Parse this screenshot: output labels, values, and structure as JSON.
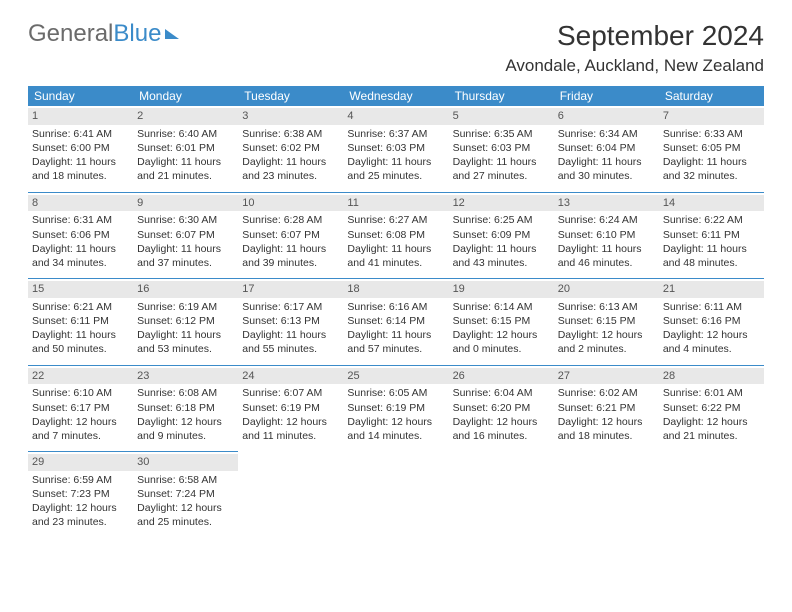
{
  "brand": {
    "part1": "General",
    "part2": "Blue"
  },
  "title": "September 2024",
  "location": "Avondale, Auckland, New Zealand",
  "colors": {
    "header_bg": "#3b8bc9",
    "daynum_bg": "#e8e8e8",
    "border": "#3b8bc9",
    "text": "#333333"
  },
  "day_headers": [
    "Sunday",
    "Monday",
    "Tuesday",
    "Wednesday",
    "Thursday",
    "Friday",
    "Saturday"
  ],
  "weeks": [
    [
      {
        "n": "1",
        "sr": "Sunrise: 6:41 AM",
        "ss": "Sunset: 6:00 PM",
        "d1": "Daylight: 11 hours",
        "d2": "and 18 minutes."
      },
      {
        "n": "2",
        "sr": "Sunrise: 6:40 AM",
        "ss": "Sunset: 6:01 PM",
        "d1": "Daylight: 11 hours",
        "d2": "and 21 minutes."
      },
      {
        "n": "3",
        "sr": "Sunrise: 6:38 AM",
        "ss": "Sunset: 6:02 PM",
        "d1": "Daylight: 11 hours",
        "d2": "and 23 minutes."
      },
      {
        "n": "4",
        "sr": "Sunrise: 6:37 AM",
        "ss": "Sunset: 6:03 PM",
        "d1": "Daylight: 11 hours",
        "d2": "and 25 minutes."
      },
      {
        "n": "5",
        "sr": "Sunrise: 6:35 AM",
        "ss": "Sunset: 6:03 PM",
        "d1": "Daylight: 11 hours",
        "d2": "and 27 minutes."
      },
      {
        "n": "6",
        "sr": "Sunrise: 6:34 AM",
        "ss": "Sunset: 6:04 PM",
        "d1": "Daylight: 11 hours",
        "d2": "and 30 minutes."
      },
      {
        "n": "7",
        "sr": "Sunrise: 6:33 AM",
        "ss": "Sunset: 6:05 PM",
        "d1": "Daylight: 11 hours",
        "d2": "and 32 minutes."
      }
    ],
    [
      {
        "n": "8",
        "sr": "Sunrise: 6:31 AM",
        "ss": "Sunset: 6:06 PM",
        "d1": "Daylight: 11 hours",
        "d2": "and 34 minutes."
      },
      {
        "n": "9",
        "sr": "Sunrise: 6:30 AM",
        "ss": "Sunset: 6:07 PM",
        "d1": "Daylight: 11 hours",
        "d2": "and 37 minutes."
      },
      {
        "n": "10",
        "sr": "Sunrise: 6:28 AM",
        "ss": "Sunset: 6:07 PM",
        "d1": "Daylight: 11 hours",
        "d2": "and 39 minutes."
      },
      {
        "n": "11",
        "sr": "Sunrise: 6:27 AM",
        "ss": "Sunset: 6:08 PM",
        "d1": "Daylight: 11 hours",
        "d2": "and 41 minutes."
      },
      {
        "n": "12",
        "sr": "Sunrise: 6:25 AM",
        "ss": "Sunset: 6:09 PM",
        "d1": "Daylight: 11 hours",
        "d2": "and 43 minutes."
      },
      {
        "n": "13",
        "sr": "Sunrise: 6:24 AM",
        "ss": "Sunset: 6:10 PM",
        "d1": "Daylight: 11 hours",
        "d2": "and 46 minutes."
      },
      {
        "n": "14",
        "sr": "Sunrise: 6:22 AM",
        "ss": "Sunset: 6:11 PM",
        "d1": "Daylight: 11 hours",
        "d2": "and 48 minutes."
      }
    ],
    [
      {
        "n": "15",
        "sr": "Sunrise: 6:21 AM",
        "ss": "Sunset: 6:11 PM",
        "d1": "Daylight: 11 hours",
        "d2": "and 50 minutes."
      },
      {
        "n": "16",
        "sr": "Sunrise: 6:19 AM",
        "ss": "Sunset: 6:12 PM",
        "d1": "Daylight: 11 hours",
        "d2": "and 53 minutes."
      },
      {
        "n": "17",
        "sr": "Sunrise: 6:17 AM",
        "ss": "Sunset: 6:13 PM",
        "d1": "Daylight: 11 hours",
        "d2": "and 55 minutes."
      },
      {
        "n": "18",
        "sr": "Sunrise: 6:16 AM",
        "ss": "Sunset: 6:14 PM",
        "d1": "Daylight: 11 hours",
        "d2": "and 57 minutes."
      },
      {
        "n": "19",
        "sr": "Sunrise: 6:14 AM",
        "ss": "Sunset: 6:15 PM",
        "d1": "Daylight: 12 hours",
        "d2": "and 0 minutes."
      },
      {
        "n": "20",
        "sr": "Sunrise: 6:13 AM",
        "ss": "Sunset: 6:15 PM",
        "d1": "Daylight: 12 hours",
        "d2": "and 2 minutes."
      },
      {
        "n": "21",
        "sr": "Sunrise: 6:11 AM",
        "ss": "Sunset: 6:16 PM",
        "d1": "Daylight: 12 hours",
        "d2": "and 4 minutes."
      }
    ],
    [
      {
        "n": "22",
        "sr": "Sunrise: 6:10 AM",
        "ss": "Sunset: 6:17 PM",
        "d1": "Daylight: 12 hours",
        "d2": "and 7 minutes."
      },
      {
        "n": "23",
        "sr": "Sunrise: 6:08 AM",
        "ss": "Sunset: 6:18 PM",
        "d1": "Daylight: 12 hours",
        "d2": "and 9 minutes."
      },
      {
        "n": "24",
        "sr": "Sunrise: 6:07 AM",
        "ss": "Sunset: 6:19 PM",
        "d1": "Daylight: 12 hours",
        "d2": "and 11 minutes."
      },
      {
        "n": "25",
        "sr": "Sunrise: 6:05 AM",
        "ss": "Sunset: 6:19 PM",
        "d1": "Daylight: 12 hours",
        "d2": "and 14 minutes."
      },
      {
        "n": "26",
        "sr": "Sunrise: 6:04 AM",
        "ss": "Sunset: 6:20 PM",
        "d1": "Daylight: 12 hours",
        "d2": "and 16 minutes."
      },
      {
        "n": "27",
        "sr": "Sunrise: 6:02 AM",
        "ss": "Sunset: 6:21 PM",
        "d1": "Daylight: 12 hours",
        "d2": "and 18 minutes."
      },
      {
        "n": "28",
        "sr": "Sunrise: 6:01 AM",
        "ss": "Sunset: 6:22 PM",
        "d1": "Daylight: 12 hours",
        "d2": "and 21 minutes."
      }
    ],
    [
      {
        "n": "29",
        "sr": "Sunrise: 6:59 AM",
        "ss": "Sunset: 7:23 PM",
        "d1": "Daylight: 12 hours",
        "d2": "and 23 minutes."
      },
      {
        "n": "30",
        "sr": "Sunrise: 6:58 AM",
        "ss": "Sunset: 7:24 PM",
        "d1": "Daylight: 12 hours",
        "d2": "and 25 minutes."
      },
      {
        "empty": true
      },
      {
        "empty": true
      },
      {
        "empty": true
      },
      {
        "empty": true
      },
      {
        "empty": true
      }
    ]
  ]
}
